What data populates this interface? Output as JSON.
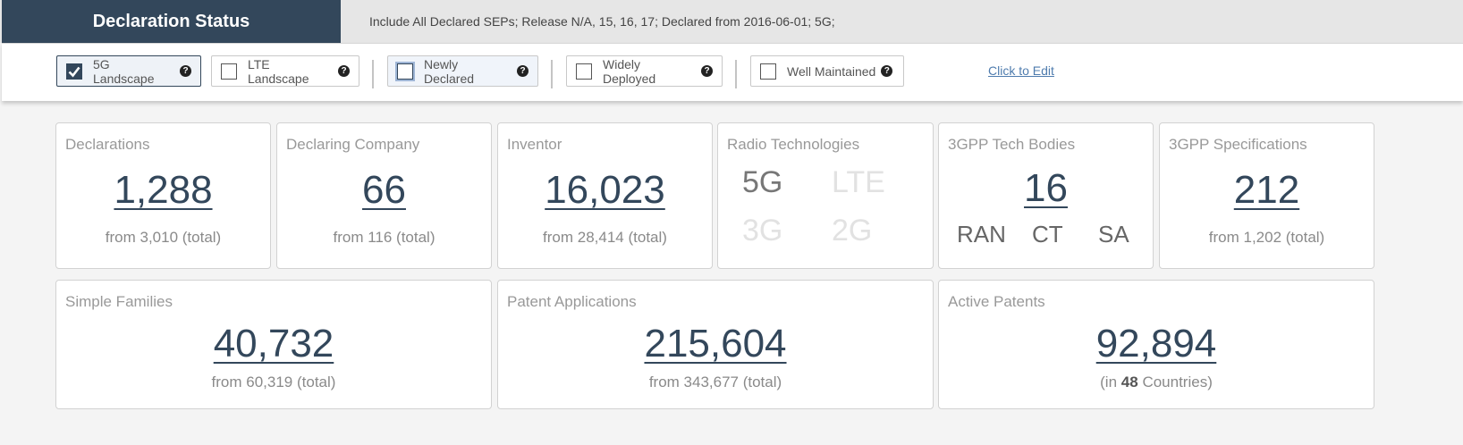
{
  "header": {
    "title": "Declaration Status",
    "filter_summary": "Include All Declared SEPs; Release N/A, 15, 16, 17; Declared from 2016-06-01; 5G;"
  },
  "filters": {
    "items": [
      {
        "label": "5G Landscape",
        "checked": true
      },
      {
        "label": "LTE Landscape",
        "checked": false
      },
      {
        "label": "Newly Declared",
        "checked": false
      },
      {
        "label": "Widely Deployed",
        "checked": false
      },
      {
        "label": "Well Maintained",
        "checked": false
      }
    ],
    "edit_link": "Click to Edit",
    "help_icon_glyph": "?",
    "check_glyph": "✓"
  },
  "stats": {
    "declarations": {
      "label": "Declarations",
      "value": "1,288",
      "sub": "from 3,010 (total)"
    },
    "declaring_company": {
      "label": "Declaring Company",
      "value": "66",
      "sub": "from 116 (total)"
    },
    "inventor": {
      "label": "Inventor",
      "value": "16,023",
      "sub": "from 28,414 (total)"
    },
    "radio_technologies": {
      "label": "Radio Technologies",
      "techs": [
        {
          "name": "5G",
          "active": true
        },
        {
          "name": "LTE",
          "active": false
        },
        {
          "name": "3G",
          "active": false
        },
        {
          "name": "2G",
          "active": false
        }
      ]
    },
    "tech_bodies": {
      "label": "3GPP Tech Bodies",
      "value": "16",
      "bodies": [
        "RAN",
        "CT",
        "SA"
      ]
    },
    "specifications": {
      "label": "3GPP Specifications",
      "value": "212",
      "sub": "from 1,202 (total)"
    },
    "simple_families": {
      "label": "Simple Families",
      "value": "40,732",
      "sub": "from 60,319 (total)"
    },
    "patent_applications": {
      "label": "Patent Applications",
      "value": "215,604",
      "sub": "from 343,677 (total)"
    },
    "active_patents": {
      "label": "Active Patents",
      "value": "92,894",
      "sub_prefix": "(in",
      "countries": "48",
      "sub_suffix": "Countries)"
    }
  },
  "colors": {
    "brand": "#33475b",
    "link": "#4f7cae",
    "active_tech": "#777777",
    "inactive_tech": "#e2e2e2"
  }
}
